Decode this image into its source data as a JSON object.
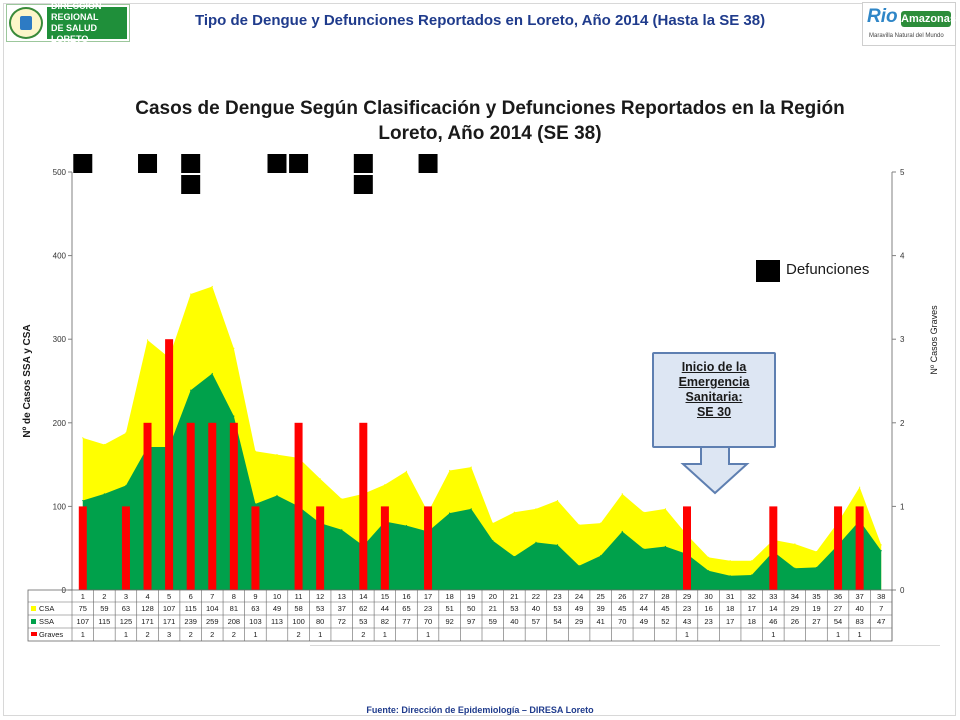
{
  "header": {
    "left_logo_text": [
      "DIRECCIÓN REGIONAL",
      "DE SALUD LORETO"
    ],
    "title": "Tipo de Dengue y Defunciones Reportados en Loreto, Año 2014 (Hasta la SE 38)",
    "right_logo_text": "Amazonas",
    "right_logo_rio": "Rio",
    "right_logo_tag": "Maravilla Natural del Mundo"
  },
  "footer": "Fuente: Dirección de Epidemiología – DIRESA Loreto",
  "legend_label": "Defunciones",
  "callout": [
    "Inicio de la",
    "Emergencia",
    "Sanitaria:",
    "SE 30"
  ],
  "colors": {
    "csa": "#ffff00",
    "ssa": "#00a14b",
    "graves": "#ff0000",
    "defunciones": "#000000"
  },
  "chart_data": {
    "type": "area",
    "title": "Casos de Dengue Según Clasificación y Defunciones Reportados en la Región Loreto, Año 2014 (SE 38)",
    "title_lines": [
      "Casos de Dengue Según Clasificación y Defunciones Reportados en la Región",
      "Loreto, Año 2014 (SE 38)"
    ],
    "ylabel": "Nº de Casos SSA y CSA",
    "y2label": "Nº Casos Graves",
    "ylim": [
      0,
      500
    ],
    "y2lim": [
      0,
      5
    ],
    "yticks": [
      0,
      100,
      200,
      300,
      400,
      500
    ],
    "y2ticks": [
      0,
      1,
      2,
      3,
      4,
      5
    ],
    "categories": [
      "1",
      "2",
      "3",
      "4",
      "5",
      "6",
      "7",
      "8",
      "9",
      "10",
      "11",
      "12",
      "13",
      "14",
      "15",
      "16",
      "17",
      "18",
      "19",
      "20",
      "21",
      "22",
      "23",
      "24",
      "25",
      "26",
      "27",
      "28",
      "29",
      "30",
      "31",
      "32",
      "33",
      "34",
      "35",
      "36",
      "37",
      "38"
    ],
    "series": [
      {
        "name": "CSA",
        "type": "area-stacked",
        "values": [
          75,
          59,
          63,
          128,
          107,
          115,
          104,
          81,
          63,
          49,
          58,
          53,
          37,
          62,
          44,
          65,
          23,
          51,
          50,
          21,
          53,
          40,
          53,
          49,
          39,
          45,
          44,
          45,
          23,
          16,
          18,
          17,
          14,
          29,
          19,
          27,
          40,
          7
        ]
      },
      {
        "name": "SSA",
        "type": "area",
        "values": [
          107,
          115,
          125,
          171,
          171,
          239,
          259,
          208,
          103,
          113,
          100,
          80,
          72,
          53,
          82,
          77,
          70,
          92,
          97,
          59,
          40,
          57,
          54,
          29,
          41,
          70,
          49,
          52,
          43,
          23,
          17,
          18,
          46,
          26,
          27,
          54,
          83,
          47
        ]
      },
      {
        "name": "Graves",
        "type": "bar",
        "axis": "y2",
        "values": [
          1,
          null,
          1,
          2,
          3,
          2,
          2,
          2,
          1,
          null,
          2,
          1,
          null,
          2,
          1,
          null,
          1,
          null,
          null,
          null,
          null,
          null,
          null,
          null,
          null,
          null,
          null,
          null,
          1,
          null,
          null,
          null,
          1,
          null,
          null,
          1,
          1,
          null
        ]
      }
    ],
    "defunciones": {
      "name": "Defunciones",
      "weeks": [
        1,
        4,
        6,
        6,
        10,
        11,
        14,
        14,
        17
      ]
    },
    "table_rows": [
      "CSA",
      "SSA",
      "Graves"
    ],
    "annotation": {
      "text": "Inicio de la Emergencia Sanitaria: SE 30",
      "week": 30
    }
  }
}
